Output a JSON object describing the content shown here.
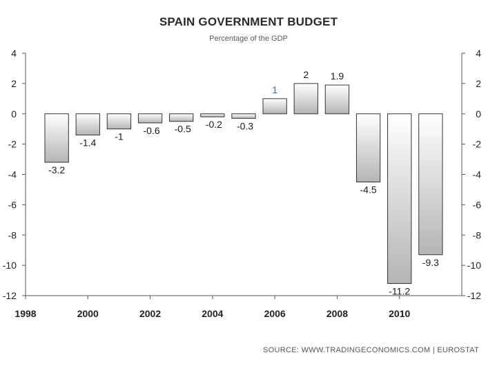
{
  "header": {
    "title": "SPAIN GOVERNMENT BUDGET",
    "subtitle": "Percentage of the GDP"
  },
  "footer": {
    "source": "SOURCE:  WWW.TRADINGECONOMICS.COM  |  EUROSTAT"
  },
  "chart_data": {
    "type": "bar",
    "title": "SPAIN GOVERNMENT BUDGET",
    "subtitle": "Percentage of the GDP",
    "categories": [
      "1999",
      "2000",
      "2001",
      "2002",
      "2003",
      "2004",
      "2005",
      "2006",
      "2007",
      "2008",
      "2009",
      "2010",
      "2011"
    ],
    "values": [
      -3.2,
      -1.4,
      -1,
      -0.6,
      -0.5,
      -0.2,
      -0.3,
      1,
      2,
      1.9,
      -4.5,
      -11.2,
      -9.3
    ],
    "data_labels": [
      "-3.2",
      "-1.4",
      "-1",
      "-0.6",
      "-0.5",
      "-0.2",
      "-0.3",
      "1",
      "2",
      "1.9",
      "-4.5",
      "-11.2",
      "-9.3"
    ],
    "x_tick_labels": [
      "1998",
      "2000",
      "2002",
      "2004",
      "2006",
      "2008",
      "2010"
    ],
    "xlim": [
      1998,
      2012
    ],
    "ylim": [
      -12,
      4
    ],
    "y_ticks": [
      4,
      2,
      0,
      -2,
      -4,
      -6,
      -8,
      -10,
      -12
    ],
    "y_axis_both_sides": true,
    "grid": false,
    "legend": "none",
    "colors": {
      "bar_light": "#ffffff",
      "bar_dark": "#b4b4b4",
      "bar_stroke": "#333333",
      "highlight_label": "#3a6fb0"
    }
  }
}
